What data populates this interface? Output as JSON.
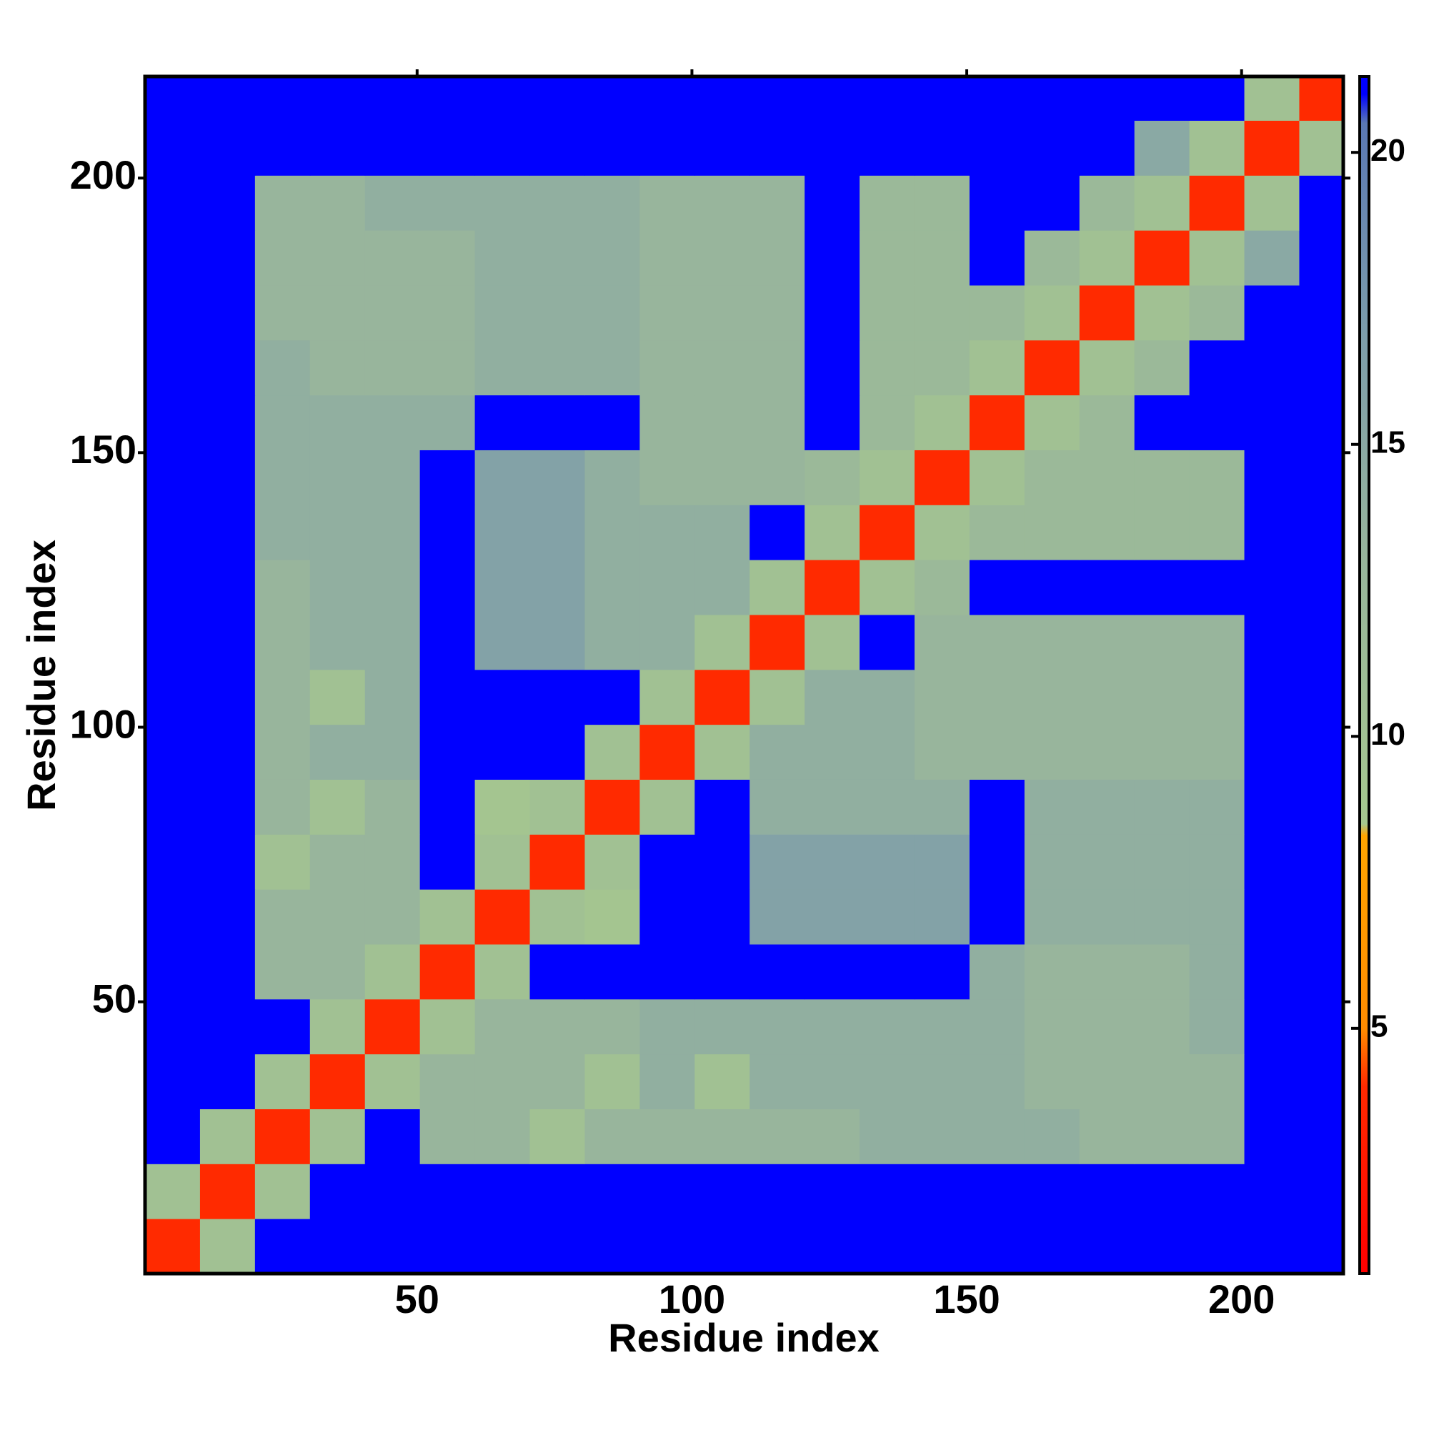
{
  "chart_data": {
    "type": "heatmap",
    "xlabel": "Residue index",
    "ylabel": "Residue index",
    "bins": [
      0.5,
      10.5,
      20.5,
      30.5,
      40.5,
      50.5,
      60.5,
      70.5,
      80.5,
      90.5,
      100.5,
      110.5,
      120.5,
      130.5,
      140.5,
      150.5,
      160.5,
      170.5,
      180.5,
      190.5,
      200.5,
      210.5,
      218.5
    ],
    "xlim": [
      0.5,
      218.5
    ],
    "ylim": [
      0.5,
      218.5
    ],
    "xticks": [
      50,
      100,
      150,
      200
    ],
    "yticks": [
      50,
      100,
      150,
      200
    ],
    "clim": [
      0.8,
      21.3
    ],
    "cticks": [
      5,
      10,
      15,
      20
    ],
    "colorscale": [
      [
        0.8,
        "#ff0000"
      ],
      [
        4,
        "#ff2a00"
      ],
      [
        5,
        "#ff8c00"
      ],
      [
        8.3,
        "#ffa500"
      ],
      [
        8.5,
        "#a6c78f"
      ],
      [
        13,
        "#98b59c"
      ],
      [
        17,
        "#7c9cab"
      ],
      [
        20.5,
        "#5a78b4"
      ],
      [
        21,
        "#0000ff"
      ],
      [
        21.3,
        "#0000ff"
      ]
    ],
    "z": [
      [
        4,
        10,
        21,
        21,
        21,
        21,
        21,
        21,
        21,
        21,
        21,
        21,
        21,
        21,
        21,
        21,
        21,
        21,
        21,
        21,
        21,
        21
      ],
      [
        10,
        4,
        10,
        21,
        21,
        21,
        21,
        21,
        21,
        21,
        21,
        21,
        21,
        21,
        21,
        21,
        21,
        21,
        21,
        21,
        21,
        21
      ],
      [
        21,
        10,
        4,
        10,
        21,
        13,
        13,
        10,
        13,
        13,
        13,
        13,
        13,
        14,
        14,
        14,
        14,
        13,
        13,
        13,
        21,
        21
      ],
      [
        21,
        21,
        10,
        4,
        10,
        13,
        13,
        13,
        10,
        14,
        10,
        14,
        14,
        14,
        14,
        14,
        13,
        13,
        13,
        13,
        21,
        21
      ],
      [
        21,
        21,
        21,
        10,
        4,
        10,
        13,
        13,
        13,
        14,
        14,
        14,
        14,
        14,
        14,
        14,
        13,
        13,
        13,
        14,
        21,
        21
      ],
      [
        21,
        21,
        13,
        13,
        10,
        4,
        10,
        21,
        21,
        21,
        21,
        21,
        21,
        21,
        21,
        14,
        13,
        13,
        13,
        14,
        21,
        21
      ],
      [
        21,
        21,
        13,
        13,
        13,
        10,
        4,
        10,
        9,
        21,
        21,
        16,
        16,
        16,
        16,
        21,
        14,
        14,
        14,
        14,
        21,
        21
      ],
      [
        21,
        21,
        10,
        13,
        13,
        21,
        10,
        4,
        10,
        21,
        21,
        16,
        16,
        16,
        16,
        21,
        14,
        14,
        14,
        14,
        21,
        21
      ],
      [
        21,
        21,
        13,
        10,
        13,
        21,
        9,
        10,
        4,
        10,
        21,
        14,
        14,
        14,
        14,
        21,
        14,
        14,
        14,
        14,
        21,
        21
      ],
      [
        21,
        21,
        13,
        14,
        14,
        21,
        21,
        21,
        10,
        4,
        10,
        14,
        14,
        14,
        13,
        13,
        13,
        13,
        13,
        13,
        21,
        21
      ],
      [
        21,
        21,
        13,
        10,
        14,
        21,
        21,
        21,
        21,
        10,
        4,
        10,
        14,
        14,
        13,
        13,
        13,
        13,
        13,
        13,
        21,
        21
      ],
      [
        21,
        21,
        13,
        14,
        14,
        21,
        16,
        16,
        14,
        14,
        10,
        4,
        10,
        21,
        13,
        13,
        13,
        13,
        13,
        13,
        21,
        21
      ],
      [
        21,
        21,
        13,
        14,
        14,
        21,
        16,
        16,
        14,
        14,
        14,
        10,
        4,
        10,
        12,
        21,
        21,
        21,
        21,
        21,
        21,
        21
      ],
      [
        21,
        21,
        14,
        14,
        14,
        21,
        16,
        16,
        14,
        14,
        14,
        21,
        10,
        4,
        10,
        12,
        12,
        12,
        12,
        12,
        21,
        21
      ],
      [
        21,
        21,
        14,
        14,
        14,
        21,
        16,
        16,
        14,
        13,
        13,
        13,
        12,
        10,
        4,
        10,
        12,
        12,
        12,
        12,
        21,
        21
      ],
      [
        21,
        21,
        14,
        14,
        14,
        14,
        21,
        21,
        21,
        13,
        13,
        13,
        21,
        12,
        10,
        4,
        10,
        12,
        21,
        21,
        21,
        21
      ],
      [
        21,
        21,
        14,
        13,
        13,
        13,
        14,
        14,
        14,
        13,
        13,
        13,
        21,
        12,
        12,
        10,
        4,
        10,
        12,
        21,
        21,
        21
      ],
      [
        21,
        21,
        13,
        13,
        13,
        13,
        14,
        14,
        14,
        13,
        13,
        13,
        21,
        12,
        12,
        12,
        10,
        4,
        10,
        12,
        21,
        21
      ],
      [
        21,
        21,
        13,
        13,
        13,
        13,
        14,
        14,
        14,
        13,
        13,
        13,
        21,
        12,
        12,
        21,
        12,
        10,
        4,
        10,
        15,
        21
      ],
      [
        21,
        21,
        13,
        13,
        14,
        14,
        14,
        14,
        14,
        13,
        13,
        13,
        21,
        12,
        12,
        21,
        21,
        12,
        10,
        4,
        10,
        21
      ],
      [
        21,
        21,
        21,
        21,
        21,
        21,
        21,
        21,
        21,
        21,
        21,
        21,
        21,
        21,
        21,
        21,
        21,
        21,
        15,
        10,
        4,
        10
      ],
      [
        21,
        21,
        21,
        21,
        21,
        21,
        21,
        21,
        21,
        21,
        21,
        21,
        21,
        21,
        21,
        21,
        21,
        21,
        21,
        21,
        10,
        4
      ]
    ]
  }
}
